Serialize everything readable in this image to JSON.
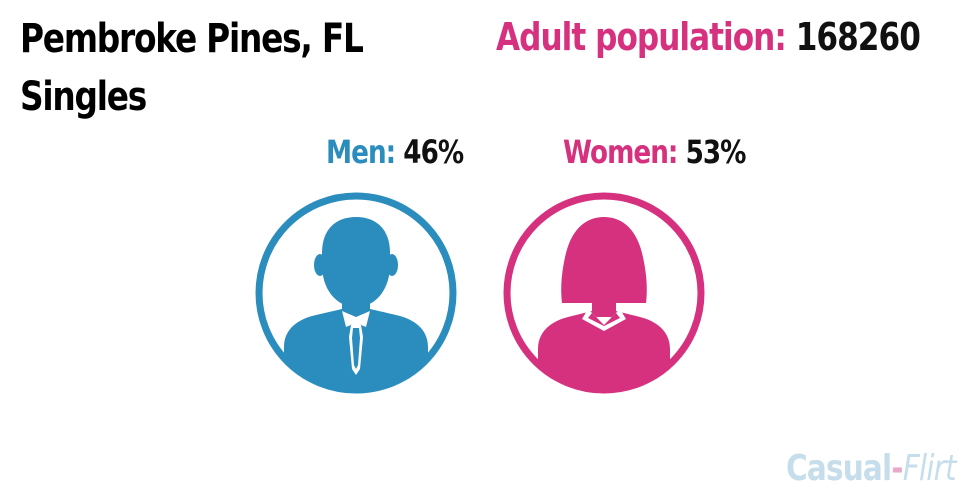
{
  "title": {
    "line1": "Pembroke Pines, FL",
    "line2": "Singles"
  },
  "adult_population": {
    "label": "Adult population:",
    "value": "168260"
  },
  "men": {
    "label": "Men:",
    "value": "46%",
    "icon": "man-icon",
    "color": "#2b8dbd"
  },
  "women": {
    "label": "Women:",
    "value": "53%",
    "icon": "woman-icon",
    "color": "#d6317f"
  },
  "brand": {
    "part1": "Casual",
    "separator": "-",
    "part2": "Flirt"
  }
}
